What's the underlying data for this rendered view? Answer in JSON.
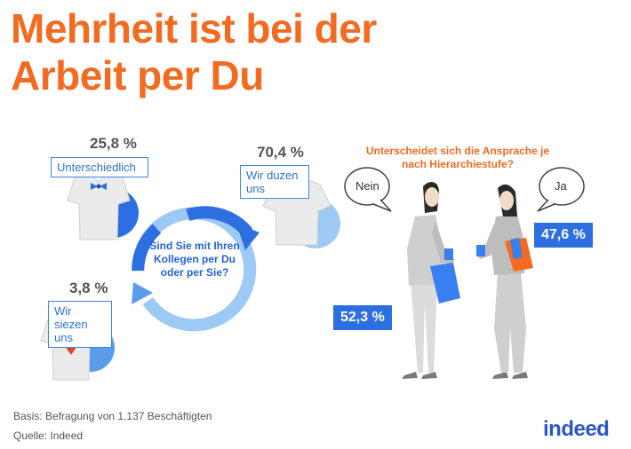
{
  "title": {
    "line1": "Mehrheit ist bei der",
    "line2": "Arbeit per Du"
  },
  "question_main": "Sind Sie mit Ihren Kollegen per Du oder per Sie?",
  "question_sub": "Unterscheidet sich die Ansprache je nach Hierarchiestufe?",
  "bubbles": {
    "left": "Nein",
    "right": "Ja"
  },
  "footer": {
    "basis": "Basis: Befragung von 1.137 Beschäftigten",
    "source": "Quelle: Indeed"
  },
  "logo": "indeed",
  "colors": {
    "accent": "#f26b21",
    "blue": "#2d6fe0",
    "light_blue": "#9ccaf5",
    "mid_blue": "#5b9cea"
  },
  "chart_data": [
    {
      "type": "pie",
      "title": "Sind Sie mit Ihren Kollegen per Du oder per Sie?",
      "slices": [
        {
          "label": "Wir duzen uns",
          "value": 70.4,
          "display": "70,4 %"
        },
        {
          "label": "Unterschiedlich",
          "value": 25.8,
          "display": "25,8 %"
        },
        {
          "label": "Wir siezen uns",
          "value": 3.8,
          "display": "3,8 %"
        }
      ]
    },
    {
      "type": "bar",
      "title": "Unterscheidet sich die Ansprache je nach Hierarchiestufe?",
      "categories": [
        "Nein",
        "Ja"
      ],
      "values": [
        52.3,
        47.6
      ],
      "display": [
        "52,3 %",
        "47,6 %"
      ]
    }
  ]
}
